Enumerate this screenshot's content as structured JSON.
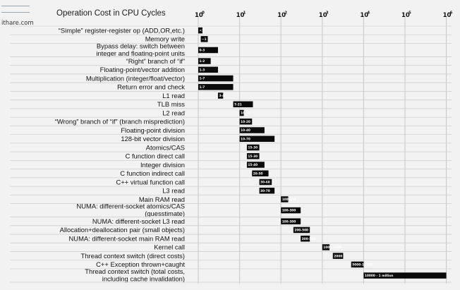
{
  "logo": {
    "text": "ithare.com"
  },
  "chart_data": {
    "type": "bar",
    "orientation": "horizontal",
    "title": "Operation Cost in CPU Cycles",
    "x_scale": "log",
    "xlim": [
      1,
      1000000
    ],
    "x_ticks": [
      {
        "base": "10",
        "exp": "0"
      },
      {
        "base": "10",
        "exp": "1"
      },
      {
        "base": "10",
        "exp": "2"
      },
      {
        "base": "10",
        "exp": "3"
      },
      {
        "base": "10",
        "exp": "4"
      },
      {
        "base": "10",
        "exp": "5"
      },
      {
        "base": "10",
        "exp": "6"
      }
    ],
    "grid": true,
    "rows": [
      {
        "lines": [
          "“Simple” register-register op (ADD,OR,etc.)"
        ],
        "label": "<1",
        "min": 1,
        "max": 1.25
      },
      {
        "lines": [
          "Memory write"
        ],
        "label": "~1",
        "min": 1.15,
        "max": 1.7
      },
      {
        "lines": [
          "Bypass delay: switch between",
          "integer and floating-point units"
        ],
        "label": "0-3",
        "min": 1,
        "max": 3
      },
      {
        "lines": [
          "“Right” branch of “if”"
        ],
        "label": "1-2",
        "min": 1,
        "max": 2
      },
      {
        "lines": [
          "Floating-point/vector addition"
        ],
        "label": "1-3",
        "min": 1,
        "max": 3
      },
      {
        "lines": [
          "Multiplication (integer/float/vector)"
        ],
        "label": "1-7",
        "min": 1,
        "max": 7
      },
      {
        "lines": [
          "Return error and check"
        ],
        "label": "1-7",
        "min": 1,
        "max": 7
      },
      {
        "lines": [
          "L1 read"
        ],
        "label": "3-4",
        "min": 3,
        "max": 4
      },
      {
        "lines": [
          "TLB miss"
        ],
        "label": "7-21",
        "min": 7,
        "max": 21
      },
      {
        "lines": [
          "L2 read"
        ],
        "label": "10-12",
        "min": 10,
        "max": 12
      },
      {
        "lines": [
          "“Wrong” branch of “if” (branch misprediction)"
        ],
        "label": "10-20",
        "min": 10,
        "max": 20
      },
      {
        "lines": [
          "Floating-point division"
        ],
        "label": "10-40",
        "min": 10,
        "max": 40
      },
      {
        "lines": [
          "128-bit vector division"
        ],
        "label": "10-70",
        "min": 10,
        "max": 70
      },
      {
        "lines": [
          "Atomics/CAS"
        ],
        "label": "15-30",
        "min": 15,
        "max": 30
      },
      {
        "lines": [
          "C function direct call"
        ],
        "label": "15-30",
        "min": 15,
        "max": 30
      },
      {
        "lines": [
          "Integer division"
        ],
        "label": "15-40",
        "min": 15,
        "max": 40
      },
      {
        "lines": [
          "C function indirect call"
        ],
        "label": "20-50",
        "min": 20,
        "max": 50
      },
      {
        "lines": [
          "C++ virtual function call"
        ],
        "label": "30-60",
        "min": 30,
        "max": 60
      },
      {
        "lines": [
          "L3 read"
        ],
        "label": "30-70",
        "min": 30,
        "max": 70
      },
      {
        "lines": [
          "Main RAM read"
        ],
        "label": "100-150",
        "min": 100,
        "max": 150
      },
      {
        "lines": [
          "NUMA: different-socket atomics/CAS",
          "(guesstimate)"
        ],
        "label": "100-300",
        "min": 100,
        "max": 300
      },
      {
        "lines": [
          "NUMA: different-socket L3 read"
        ],
        "label": "100-300",
        "min": 100,
        "max": 300
      },
      {
        "lines": [
          "Allocation+deallocation pair (small objects)"
        ],
        "label": "200-500",
        "min": 200,
        "max": 500
      },
      {
        "lines": [
          "NUMA: different-socket main RAM read"
        ],
        "label": "300-500",
        "min": 300,
        "max": 500
      },
      {
        "lines": [
          "Kernel call"
        ],
        "label": "1000-1500",
        "min": 1000,
        "max": 1500
      },
      {
        "lines": [
          "Thread context switch (direct costs)"
        ],
        "label": "2000",
        "min": 1800,
        "max": 3200
      },
      {
        "lines": [
          "C++ Exception thrown+caught"
        ],
        "label": "5000-10000",
        "min": 5000,
        "max": 10000
      },
      {
        "lines": [
          "Thread context switch (total costs,",
          "including cache invalidation)"
        ],
        "label": "10000 - 1 million",
        "min": 10000,
        "max": 1000000
      }
    ]
  }
}
